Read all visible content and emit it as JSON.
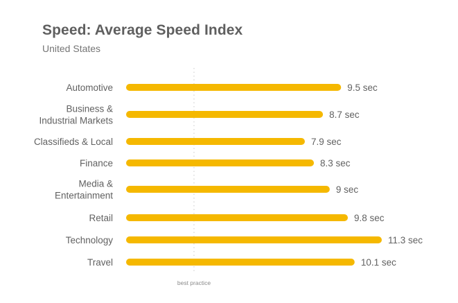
{
  "title": "Speed: Average Speed Index",
  "subtitle": "United States",
  "colors": {
    "bar": "#f5b800",
    "category_text": "#616161",
    "value_text": "#616161",
    "reference_line": "#c8c8c8"
  },
  "chart_data": {
    "type": "bar",
    "orientation": "horizontal",
    "title": "Speed: Average Speed Index",
    "subtitle": "United States",
    "categories": [
      [
        "Automotive"
      ],
      [
        "Business &",
        "Industrial Markets"
      ],
      [
        "Classifieds & Local"
      ],
      [
        "Finance"
      ],
      [
        "Media &",
        "Entertainment"
      ],
      [
        "Retail"
      ],
      [
        "Technology"
      ],
      [
        "Travel"
      ]
    ],
    "values": [
      9.5,
      8.7,
      7.9,
      8.3,
      9,
      9.8,
      11.3,
      10.1
    ],
    "value_labels": [
      "9.5 sec",
      "8.7 sec",
      "7.9 sec",
      "8.3 sec",
      "9 sec",
      "9.8 sec",
      "11.3 sec",
      "10.1 sec"
    ],
    "unit": "sec",
    "xlim": [
      0,
      11.3
    ],
    "reference_line": {
      "value": 3,
      "label": "best practice"
    },
    "grid": false,
    "legend": "none"
  }
}
